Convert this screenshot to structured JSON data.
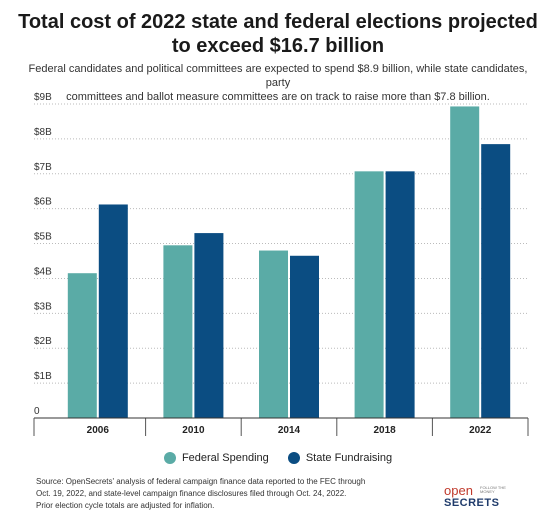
{
  "header": {
    "title_line1": "Total cost of 2022 state and federal elections projected",
    "title_line2": "to exceed $16.7 billion",
    "subtitle_line1": "Federal candidates and political committees are expected to spend $8.9 billion, while state candidates, party",
    "subtitle_line2": "committees and ballot measure committees are on track to raise more than $7.8 billion."
  },
  "chart_data": {
    "type": "bar",
    "categories": [
      "2006",
      "2010",
      "2014",
      "2018",
      "2022"
    ],
    "series": [
      {
        "name": "Federal Spending",
        "color": "#5aaba6",
        "values": [
          4.15,
          4.95,
          4.8,
          7.07,
          8.93
        ]
      },
      {
        "name": "State Fundraising",
        "color": "#0b4d82",
        "values": [
          6.12,
          5.3,
          4.65,
          7.07,
          7.85
        ]
      }
    ],
    "ylim": [
      0,
      9
    ],
    "yticks": [
      0,
      1,
      2,
      3,
      4,
      5,
      6,
      7,
      8,
      9
    ],
    "ytick_labels": [
      "0",
      "$1B",
      "$2B",
      "$3B",
      "$4B",
      "$5B",
      "$6B",
      "$7B",
      "$8B",
      "$9B"
    ],
    "grid": "horizontal dotted",
    "legend": "bottom-center"
  },
  "footer": {
    "source_line1": "Source: OpenSecrets' analysis of federal campaign finance data reported to the FEC through",
    "source_line2": "Oct. 19, 2022, and state-level campaign finance disclosures filed through Oct. 24, 2022.",
    "source_line3": "Prior election cycle totals are adjusted for inflation.",
    "logo_open": "open",
    "logo_secrets": "SECRETS",
    "logo_tagline": "FOLLOW THE MONEY"
  }
}
